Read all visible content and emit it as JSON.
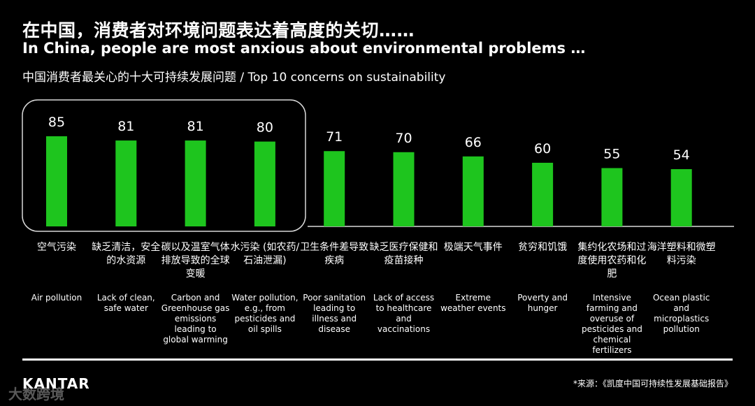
{
  "header": {
    "title_cn": "在中国，消费者对环境问题表达着高度的关切……",
    "title_en": "In China, people are most anxious about environmental problems …",
    "subtitle": "中国消费者最关心的十大可持续发展问题 / Top 10 concerns on sustainability"
  },
  "colors": {
    "bar": "#1ec51e",
    "highlight_box": "#d9d9d9",
    "axis": "#d9d9d9"
  },
  "chart_data": {
    "type": "bar",
    "title": "Top 10 concerns on sustainability",
    "categories": [
      "Air pollution",
      "Lack of clean, safe water",
      "Carbon and Greenhouse gas emissions leading to global warming",
      "Water pollution, e.g., from pesticides and oil spills",
      "Poor sanitation leading to illness and disease",
      "Lack of access to healthcare and vaccinations",
      "Extreme weather events",
      "Poverty and hunger",
      "Intensive farming and overuse of pesticides and chemical fertilizers",
      "Ocean plastic and microplastics pollution"
    ],
    "values": [
      85,
      81,
      81,
      80,
      71,
      70,
      66,
      60,
      55,
      54
    ],
    "ylim": [
      0,
      85
    ],
    "highlighted_count": 4,
    "grid": false
  },
  "labels_cn": [
    "空气污染",
    "缺乏清洁，安全的水资源",
    "碳以及温室气体排放导致的全球变暖",
    "水污染 (如农药/石油泄漏)",
    "卫生条件差导致疾病",
    "缺乏医疗保健和疫苗接种",
    "极端天气事件",
    "贫穷和饥饿",
    "集约化农场和过度使用农药和化肥",
    "海洋塑料和微塑料污染"
  ],
  "labels_en": [
    "Air pollution",
    "Lack of clean, safe water",
    "Carbon and Greenhouse gas emissions leading to global warming",
    "Water pollution, e.g., from pesticides and oil spills",
    "Poor sanitation leading to illness and disease",
    "Lack of access to healthcare and vaccinations",
    "Extreme weather events",
    "Poverty and hunger",
    "Intensive farming and overuse of pesticides and chemical fertilizers",
    "Ocean plastic and microplastics pollution"
  ],
  "footer": {
    "brand": "KANTAR",
    "source": "*来源：《凯度中国可持续性发展基础报告》",
    "watermark": "大数跨境"
  }
}
